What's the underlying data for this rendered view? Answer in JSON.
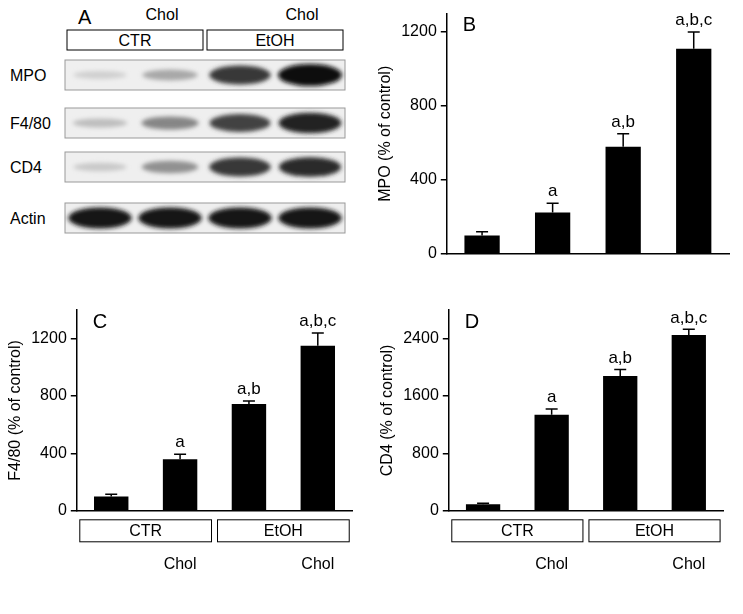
{
  "blot": {
    "panel": "A",
    "lane_labels": [
      null,
      "Chol",
      null,
      "Chol"
    ],
    "groups": [
      {
        "label": "CTR",
        "size": 2
      },
      {
        "label": "EtOH",
        "size": 2
      }
    ],
    "rows": [
      {
        "label": "MPO",
        "intensity": [
          0.12,
          0.3,
          0.8,
          1.0
        ]
      },
      {
        "label": "F4/80",
        "intensity": [
          0.2,
          0.45,
          0.75,
          0.9
        ]
      },
      {
        "label": "CD4",
        "intensity": [
          0.15,
          0.4,
          0.8,
          0.85
        ]
      },
      {
        "label": "Actin",
        "intensity": [
          0.95,
          0.95,
          0.95,
          0.95
        ]
      }
    ]
  },
  "chart_data": [
    {
      "type": "bar",
      "panel": "B",
      "y_label": "MPO (% of control)",
      "categories": [
        null,
        null,
        null,
        null
      ],
      "values": [
        100,
        225,
        580,
        1110
      ],
      "errors": [
        20,
        50,
        70,
        90
      ],
      "annotations": [
        null,
        "a",
        "a,b",
        "a,b,c"
      ],
      "color": "#000000",
      "ylim": [
        0,
        1300
      ],
      "yticks": [
        0,
        400,
        800,
        1200
      ],
      "grid": false,
      "tick_labels": "y"
    },
    {
      "type": "bar",
      "panel": "C",
      "y_label": "F4/80 (% of control)",
      "categories": [
        null,
        "Chol",
        null,
        "Chol"
      ],
      "groups": [
        {
          "label": "CTR",
          "size": 2
        },
        {
          "label": "EtOH",
          "size": 2
        }
      ],
      "values": [
        100,
        360,
        745,
        1150
      ],
      "errors": [
        15,
        35,
        20,
        90
      ],
      "annotations": [
        null,
        "a",
        "a,b",
        "a,b,c"
      ],
      "color": "#000000",
      "ylim": [
        0,
        1400
      ],
      "yticks": [
        0,
        400,
        800,
        1200
      ],
      "grid": false
    },
    {
      "type": "bar",
      "panel": "D",
      "y_label": "CD4 (% of control)",
      "categories": [
        null,
        "Chol",
        null,
        "Chol"
      ],
      "groups": [
        {
          "label": "CTR",
          "size": 2
        },
        {
          "label": "EtOH",
          "size": 2
        }
      ],
      "values": [
        90,
        1340,
        1880,
        2450
      ],
      "errors": [
        15,
        80,
        90,
        80
      ],
      "annotations": [
        null,
        "a",
        "a,b",
        "a,b,c"
      ],
      "color": "#000000",
      "ylim": [
        0,
        2800
      ],
      "yticks": [
        0,
        800,
        1600,
        2400
      ],
      "grid": false
    }
  ]
}
